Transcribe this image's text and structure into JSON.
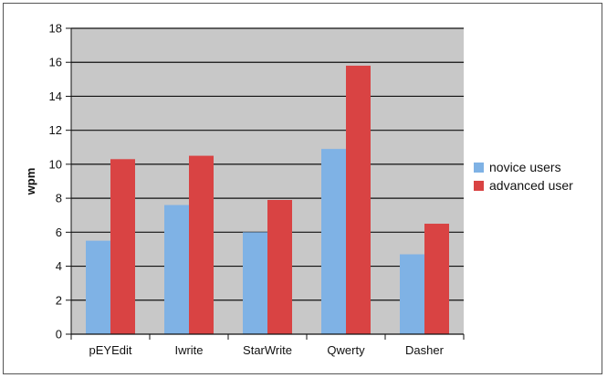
{
  "chart_data": {
    "type": "bar",
    "categories": [
      "pEYEdit",
      "Iwrite",
      "StarWrite",
      "Qwerty",
      "Dasher"
    ],
    "series": [
      {
        "name": "novice users",
        "values": [
          5.5,
          7.6,
          6.0,
          10.9,
          4.7
        ],
        "color": "#7fb2e5"
      },
      {
        "name": "advanced user",
        "values": [
          10.3,
          10.5,
          7.9,
          15.8,
          6.5
        ],
        "color": "#d94343"
      }
    ],
    "title": "",
    "xlabel": "",
    "ylabel": "wpm",
    "ylim": [
      0,
      18
    ],
    "yticks": [
      0,
      2,
      4,
      6,
      8,
      10,
      12,
      14,
      16,
      18
    ],
    "grid": true,
    "plot_background": "#c8c8c8",
    "legend_position": "right"
  }
}
